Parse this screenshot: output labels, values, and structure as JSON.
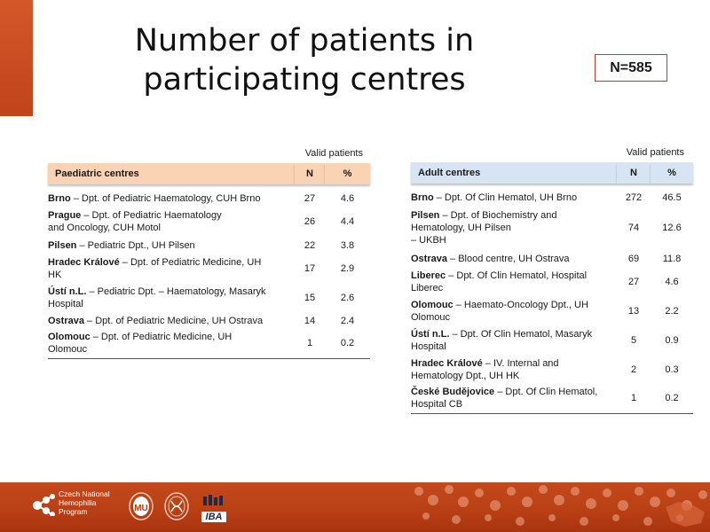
{
  "title_line1": "Number of patients in",
  "title_line2": "participating centres",
  "total_badge": "N=585",
  "valid_patients_label": "Valid patients",
  "paediatric": {
    "header": "Paediatric centres",
    "col_n": "N",
    "col_pct": "%",
    "rows": [
      {
        "city": "Brno",
        "rest": " – Dpt. of Pediatric Haematology, CUH Brno",
        "n": "27",
        "pct": "4.6"
      },
      {
        "city": "Prague",
        "rest": " – Dpt. of Pediatric Haematology",
        "rest2": "and Oncology, CUH Motol",
        "n": "26",
        "pct": "4.4"
      },
      {
        "city": "Pilsen",
        "rest": " – Pediatric Dpt., UH Pilsen",
        "n": "22",
        "pct": "3.8"
      },
      {
        "city": "Hradec Králové",
        "rest": " – Dpt. of Pediatric Medicine, UH",
        "rest2": "HK",
        "n": "17",
        "pct": "2.9"
      },
      {
        "city": "Ústí n.L.",
        "rest": " – Pediatric Dpt. – Haematology, Masaryk",
        "rest2": "Hospital",
        "n": "15",
        "pct": "2.6"
      },
      {
        "city": "Ostrava",
        "rest": " – Dpt. of Pediatric Medicine, UH Ostrava",
        "n": "14",
        "pct": "2.4"
      },
      {
        "city": "Olomouc",
        "rest": " – Dpt. of Pediatric Medicine, UH",
        "rest2": "Olomouc",
        "n": "1",
        "pct": "0.2"
      }
    ]
  },
  "adult": {
    "header": "Adult centres",
    "col_n": "N",
    "col_pct": "%",
    "rows": [
      {
        "city": "Brno",
        "rest": " – Dpt. Of Clin Hematol, UH Brno",
        "n": "272",
        "pct": "46.5"
      },
      {
        "city": "Pilsen",
        "rest": " – Dpt. of Biochemistry and",
        "rest2": "Hematology, UH Pilsen",
        "rest3": " – UKBH",
        "n": "74",
        "pct": "12.6"
      },
      {
        "city": "Ostrava",
        "rest": " – Blood centre, UH Ostrava",
        "n": "69",
        "pct": "11.8"
      },
      {
        "city": "Liberec",
        "rest": " – Dpt. Of Clin Hematol, Hospital",
        "rest2": "Liberec",
        "n": "27",
        "pct": "4.6"
      },
      {
        "city": "Olomouc",
        "rest": " – Haemato-Oncology Dpt., UH",
        "rest2": "Olomouc",
        "n": "13",
        "pct": "2.2"
      },
      {
        "city": "Ústí n.L.",
        "rest": " – Dpt. Of Clin Hematol, Masaryk",
        "rest2": "Hospital",
        "n": "5",
        "pct": "0.9"
      },
      {
        "city": "Hradec Králové",
        "rest": " – IV. Internal and",
        "rest2": "Hematology Dpt., UH HK",
        "n": "2",
        "pct": "0.3"
      },
      {
        "city": "České Budějovice",
        "rest": " – Dpt. Of Clin Hematol,",
        "rest2": "Hospital CB",
        "n": "1",
        "pct": "0.2"
      }
    ]
  },
  "footer": {
    "logo_line1": "Czech National",
    "logo_line2": "Hemophilia",
    "logo_line3": "Program",
    "iba_text": "IBA"
  },
  "colors": {
    "accent": "#c0431a",
    "paediatric_header": "#f9d3b4",
    "adult_header": "#d6e4f4",
    "badge_border": "#c0392b"
  }
}
